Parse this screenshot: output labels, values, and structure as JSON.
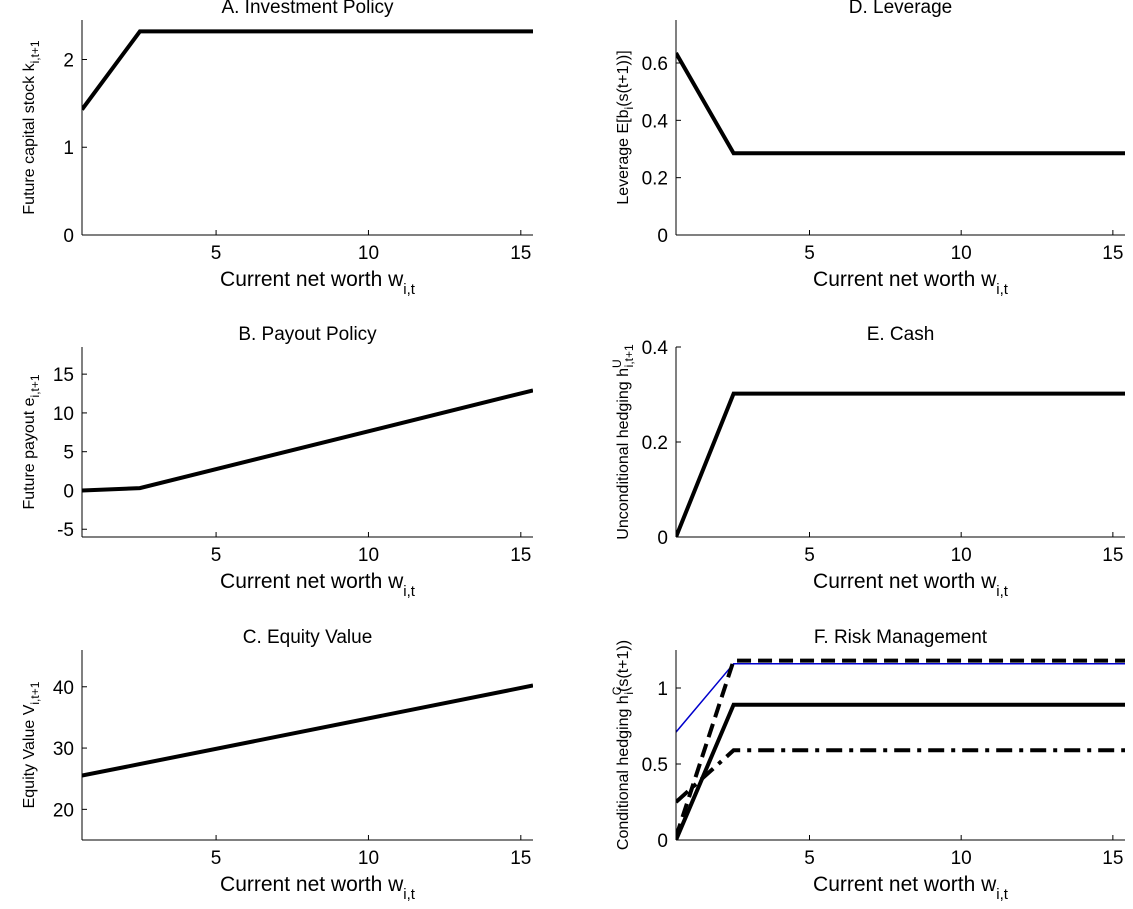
{
  "chart_data": [
    {
      "panel": "A",
      "type": "line",
      "title": "A. Investment Policy",
      "xlabel": "Current net worth w",
      "xlabel_sub": "i,t",
      "ylabel": "Future capital stock k",
      "ylabel_sub": "i,t+1",
      "ylabel_sup": "",
      "xlim": [
        0.6,
        15.4
      ],
      "ylim": [
        0,
        2.45
      ],
      "xticks": [
        5,
        10,
        15
      ],
      "yticks": [
        0,
        1,
        2
      ],
      "series": [
        {
          "style": "solid",
          "color": "#000000",
          "width": 4,
          "x": [
            0.6,
            2.5,
            15.4
          ],
          "y": [
            1.43,
            2.32,
            2.32
          ]
        }
      ]
    },
    {
      "panel": "B",
      "type": "line",
      "title": "B. Payout Policy",
      "xlabel": "Current net worth w",
      "xlabel_sub": "i,t",
      "ylabel": "Future payout e",
      "ylabel_sub": "i,t+1",
      "ylabel_sup": "",
      "xlim": [
        0.6,
        15.4
      ],
      "ylim": [
        -6,
        18.5
      ],
      "xticks": [
        5,
        10,
        15
      ],
      "yticks": [
        -5,
        0,
        5,
        10,
        15
      ],
      "series": [
        {
          "style": "solid",
          "color": "#000000",
          "width": 4,
          "x": [
            0.6,
            2.5,
            15.4
          ],
          "y": [
            0.0,
            0.3,
            12.9
          ]
        }
      ]
    },
    {
      "panel": "C",
      "type": "line",
      "title": "C. Equity Value",
      "xlabel": "Current net worth w",
      "xlabel_sub": "i,t",
      "ylabel": "Equity Value V",
      "ylabel_sub": "i,t+1",
      "ylabel_sup": "",
      "xlim": [
        0.6,
        15.4
      ],
      "ylim": [
        15,
        46
      ],
      "xticks": [
        5,
        10,
        15
      ],
      "yticks": [
        20,
        30,
        40
      ],
      "series": [
        {
          "style": "solid",
          "color": "#000000",
          "width": 4,
          "x": [
            0.6,
            15.4
          ],
          "y": [
            25.5,
            40.2
          ]
        }
      ]
    },
    {
      "panel": "D",
      "type": "line",
      "title": "D. Leverage",
      "xlabel": "Current net worth w",
      "xlabel_sub": "i,t",
      "ylabel": "Leverage E[b",
      "ylabel_sub": "i",
      "ylabel_tail": "(s(t+1))]",
      "ylabel_sup": "",
      "xlim": [
        0.6,
        15.4
      ],
      "ylim": [
        0,
        0.75
      ],
      "xticks": [
        5,
        10,
        15
      ],
      "yticks": [
        0,
        0.2,
        0.4,
        0.6
      ],
      "series": [
        {
          "style": "solid",
          "color": "#000000",
          "width": 4,
          "x": [
            0.6,
            2.5,
            15.4
          ],
          "y": [
            0.635,
            0.285,
            0.285
          ]
        }
      ]
    },
    {
      "panel": "E",
      "type": "line",
      "title": "E. Cash",
      "xlabel": "Current net worth w",
      "xlabel_sub": "i,t",
      "ylabel": "Unconditional hedging h",
      "ylabel_sub": "i,t+1",
      "ylabel_sup": "U",
      "xlim": [
        0.6,
        15.4
      ],
      "ylim": [
        0,
        0.4
      ],
      "xticks": [
        5,
        10,
        15
      ],
      "yticks": [
        0,
        0.2,
        0.4
      ],
      "series": [
        {
          "style": "solid",
          "color": "#000000",
          "width": 4,
          "x": [
            0.6,
            2.5,
            15.4
          ],
          "y": [
            0.0,
            0.302,
            0.302
          ]
        }
      ]
    },
    {
      "panel": "F",
      "type": "line",
      "title": "F. Risk Management",
      "xlabel": "Current net worth w",
      "xlabel_sub": "i,t",
      "ylabel": "Conditional hedging h",
      "ylabel_sub": "i",
      "ylabel_sup": "C",
      "ylabel_tail": "(s(t+1))",
      "xlim": [
        0.6,
        15.4
      ],
      "ylim": [
        0,
        1.25
      ],
      "xticks": [
        5,
        10,
        15
      ],
      "yticks": [
        0,
        0.5,
        1
      ],
      "series": [
        {
          "style": "solid",
          "color": "#0000cc",
          "width": 1.5,
          "x": [
            0.6,
            2.5,
            15.4
          ],
          "y": [
            0.71,
            1.16,
            1.16
          ]
        },
        {
          "style": "dashed",
          "color": "#000000",
          "width": 4,
          "x": [
            0.6,
            2.5,
            15.4
          ],
          "y": [
            0.02,
            1.18,
            1.18
          ]
        },
        {
          "style": "solid",
          "color": "#000000",
          "width": 4,
          "x": [
            0.6,
            2.5,
            15.4
          ],
          "y": [
            0.0,
            0.89,
            0.89
          ]
        },
        {
          "style": "dashdot",
          "color": "#000000",
          "width": 4,
          "x": [
            0.6,
            2.5,
            15.4
          ],
          "y": [
            0.25,
            0.59,
            0.59
          ]
        }
      ]
    }
  ]
}
